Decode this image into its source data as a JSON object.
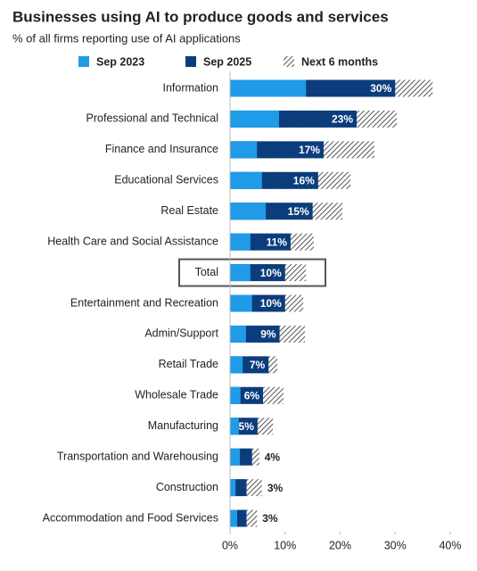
{
  "chart_data": {
    "type": "bar",
    "orientation": "horizontal",
    "title": "Businesses using AI to produce goods and services",
    "subtitle": "% of all firms reporting use of AI applications",
    "categories": [
      "Information",
      "Professional and Technical",
      "Finance and Insurance",
      "Educational Services",
      "Real Estate",
      "Health Care and Social Assistance",
      "Total",
      "Entertainment and Recreation",
      "Admin/Support",
      "Retail Trade",
      "Wholesale Trade",
      "Manufacturing",
      "Transportation and Warehousing",
      "Construction",
      "Accommodation and Food Services"
    ],
    "highlight": "Total",
    "series": [
      {
        "name": "Sep 2023",
        "color": "#1f9be8",
        "values": [
          13.8,
          8.9,
          4.9,
          5.8,
          6.5,
          3.7,
          3.7,
          4.0,
          2.9,
          2.3,
          1.9,
          1.6,
          1.8,
          1.0,
          1.3
        ]
      },
      {
        "name": "Sep 2025",
        "color": "#0b3d7c",
        "values": [
          30,
          23,
          17,
          16,
          15,
          11,
          10,
          10,
          9,
          7,
          6,
          5,
          4,
          3,
          3
        ],
        "value_labels": [
          "30%",
          "23%",
          "17%",
          "16%",
          "15%",
          "11%",
          "10%",
          "10%",
          "9%",
          "7%",
          "6%",
          "5%",
          "4%",
          "3%",
          "3%"
        ]
      },
      {
        "name": "Next 6 months",
        "color": "#555555",
        "pattern": "hatch",
        "values": [
          36.8,
          30.3,
          26.2,
          21.9,
          20.4,
          15.2,
          13.8,
          13.3,
          13.6,
          8.6,
          9.7,
          7.8,
          5.3,
          5.8,
          4.9
        ]
      }
    ],
    "xlim": [
      0,
      40
    ],
    "xticks": [
      {
        "value": 0,
        "label": "0%"
      },
      {
        "value": 10,
        "label": "10%"
      },
      {
        "value": 20,
        "label": "20%"
      },
      {
        "value": 30,
        "label": "30%"
      },
      {
        "value": 40,
        "label": "40%"
      }
    ]
  }
}
